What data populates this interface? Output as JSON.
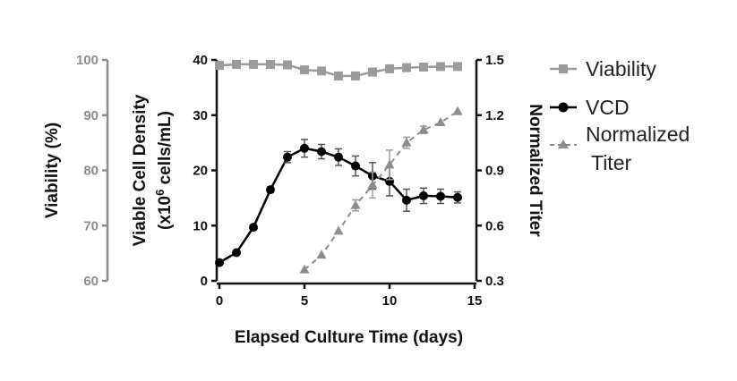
{
  "chart_data": {
    "type": "line",
    "x_axis": {
      "label": "Elapsed Culture Time (days)",
      "range": [
        0,
        15
      ],
      "ticks": [
        "0",
        "5",
        "10",
        "15"
      ]
    },
    "y_axis_left_outer": {
      "label": "Viability (%)",
      "range": [
        60,
        100
      ],
      "ticks": [
        "60",
        "70",
        "80",
        "90",
        "100"
      ]
    },
    "y_axis_left_inner": {
      "label_line1": "Viable Cell Density",
      "label_line2_prefix": "(x10",
      "label_line2_sup": "6",
      "label_line2_suffix": " cells/mL)",
      "range": [
        0,
        40
      ],
      "ticks": [
        "0",
        "10",
        "20",
        "30",
        "40"
      ]
    },
    "y_axis_right": {
      "label": "Normalized Titer",
      "range": [
        0.3,
        1.5
      ],
      "ticks": [
        "0.3",
        "0.6",
        "0.9",
        "1.2",
        "1.5"
      ]
    },
    "legend_position": "right",
    "series": [
      {
        "name": "Viability",
        "axis": "y_axis_left_outer",
        "color": "#9b9b9b",
        "marker": "square",
        "line": "solid",
        "x": [
          0,
          1,
          2,
          3,
          4,
          5,
          6,
          7,
          8,
          9,
          10,
          11,
          12,
          13,
          14
        ],
        "y": [
          99.0,
          99.2,
          99.2,
          99.2,
          99.1,
          98.2,
          98.0,
          97.1,
          97.1,
          97.8,
          98.4,
          98.6,
          98.7,
          98.8,
          98.8
        ]
      },
      {
        "name": "VCD",
        "axis": "y_axis_left_inner",
        "color": "#000000",
        "marker": "circle",
        "line": "solid",
        "x": [
          0,
          1,
          2,
          3,
          4,
          5,
          6,
          7,
          8,
          9,
          10,
          11,
          12,
          13,
          14
        ],
        "y": [
          3.3,
          5.1,
          9.7,
          16.5,
          22.4,
          24.0,
          23.4,
          22.4,
          20.8,
          19.0,
          18.0,
          14.6,
          15.4,
          15.3,
          15.1
        ],
        "error": [
          0.3,
          0.3,
          0.4,
          0.5,
          1.0,
          1.6,
          1.3,
          1.5,
          1.8,
          2.4,
          2.6,
          2.0,
          1.4,
          1.3,
          1.0
        ]
      },
      {
        "name_line1": "Normalized",
        "name_line2": "Titer",
        "axis": "y_axis_right",
        "color": "#8c8c8c",
        "marker": "triangle",
        "line": "dashed",
        "x": [
          5,
          6,
          7,
          8,
          9,
          10,
          11,
          12,
          13,
          14
        ],
        "y": [
          0.36,
          0.44,
          0.57,
          0.71,
          0.82,
          0.93,
          1.05,
          1.12,
          1.16,
          1.22
        ],
        "error": [
          0.0,
          0.0,
          0.0,
          0.03,
          0.07,
          0.08,
          0.03,
          0.02,
          0.0,
          0.0
        ]
      }
    ]
  }
}
